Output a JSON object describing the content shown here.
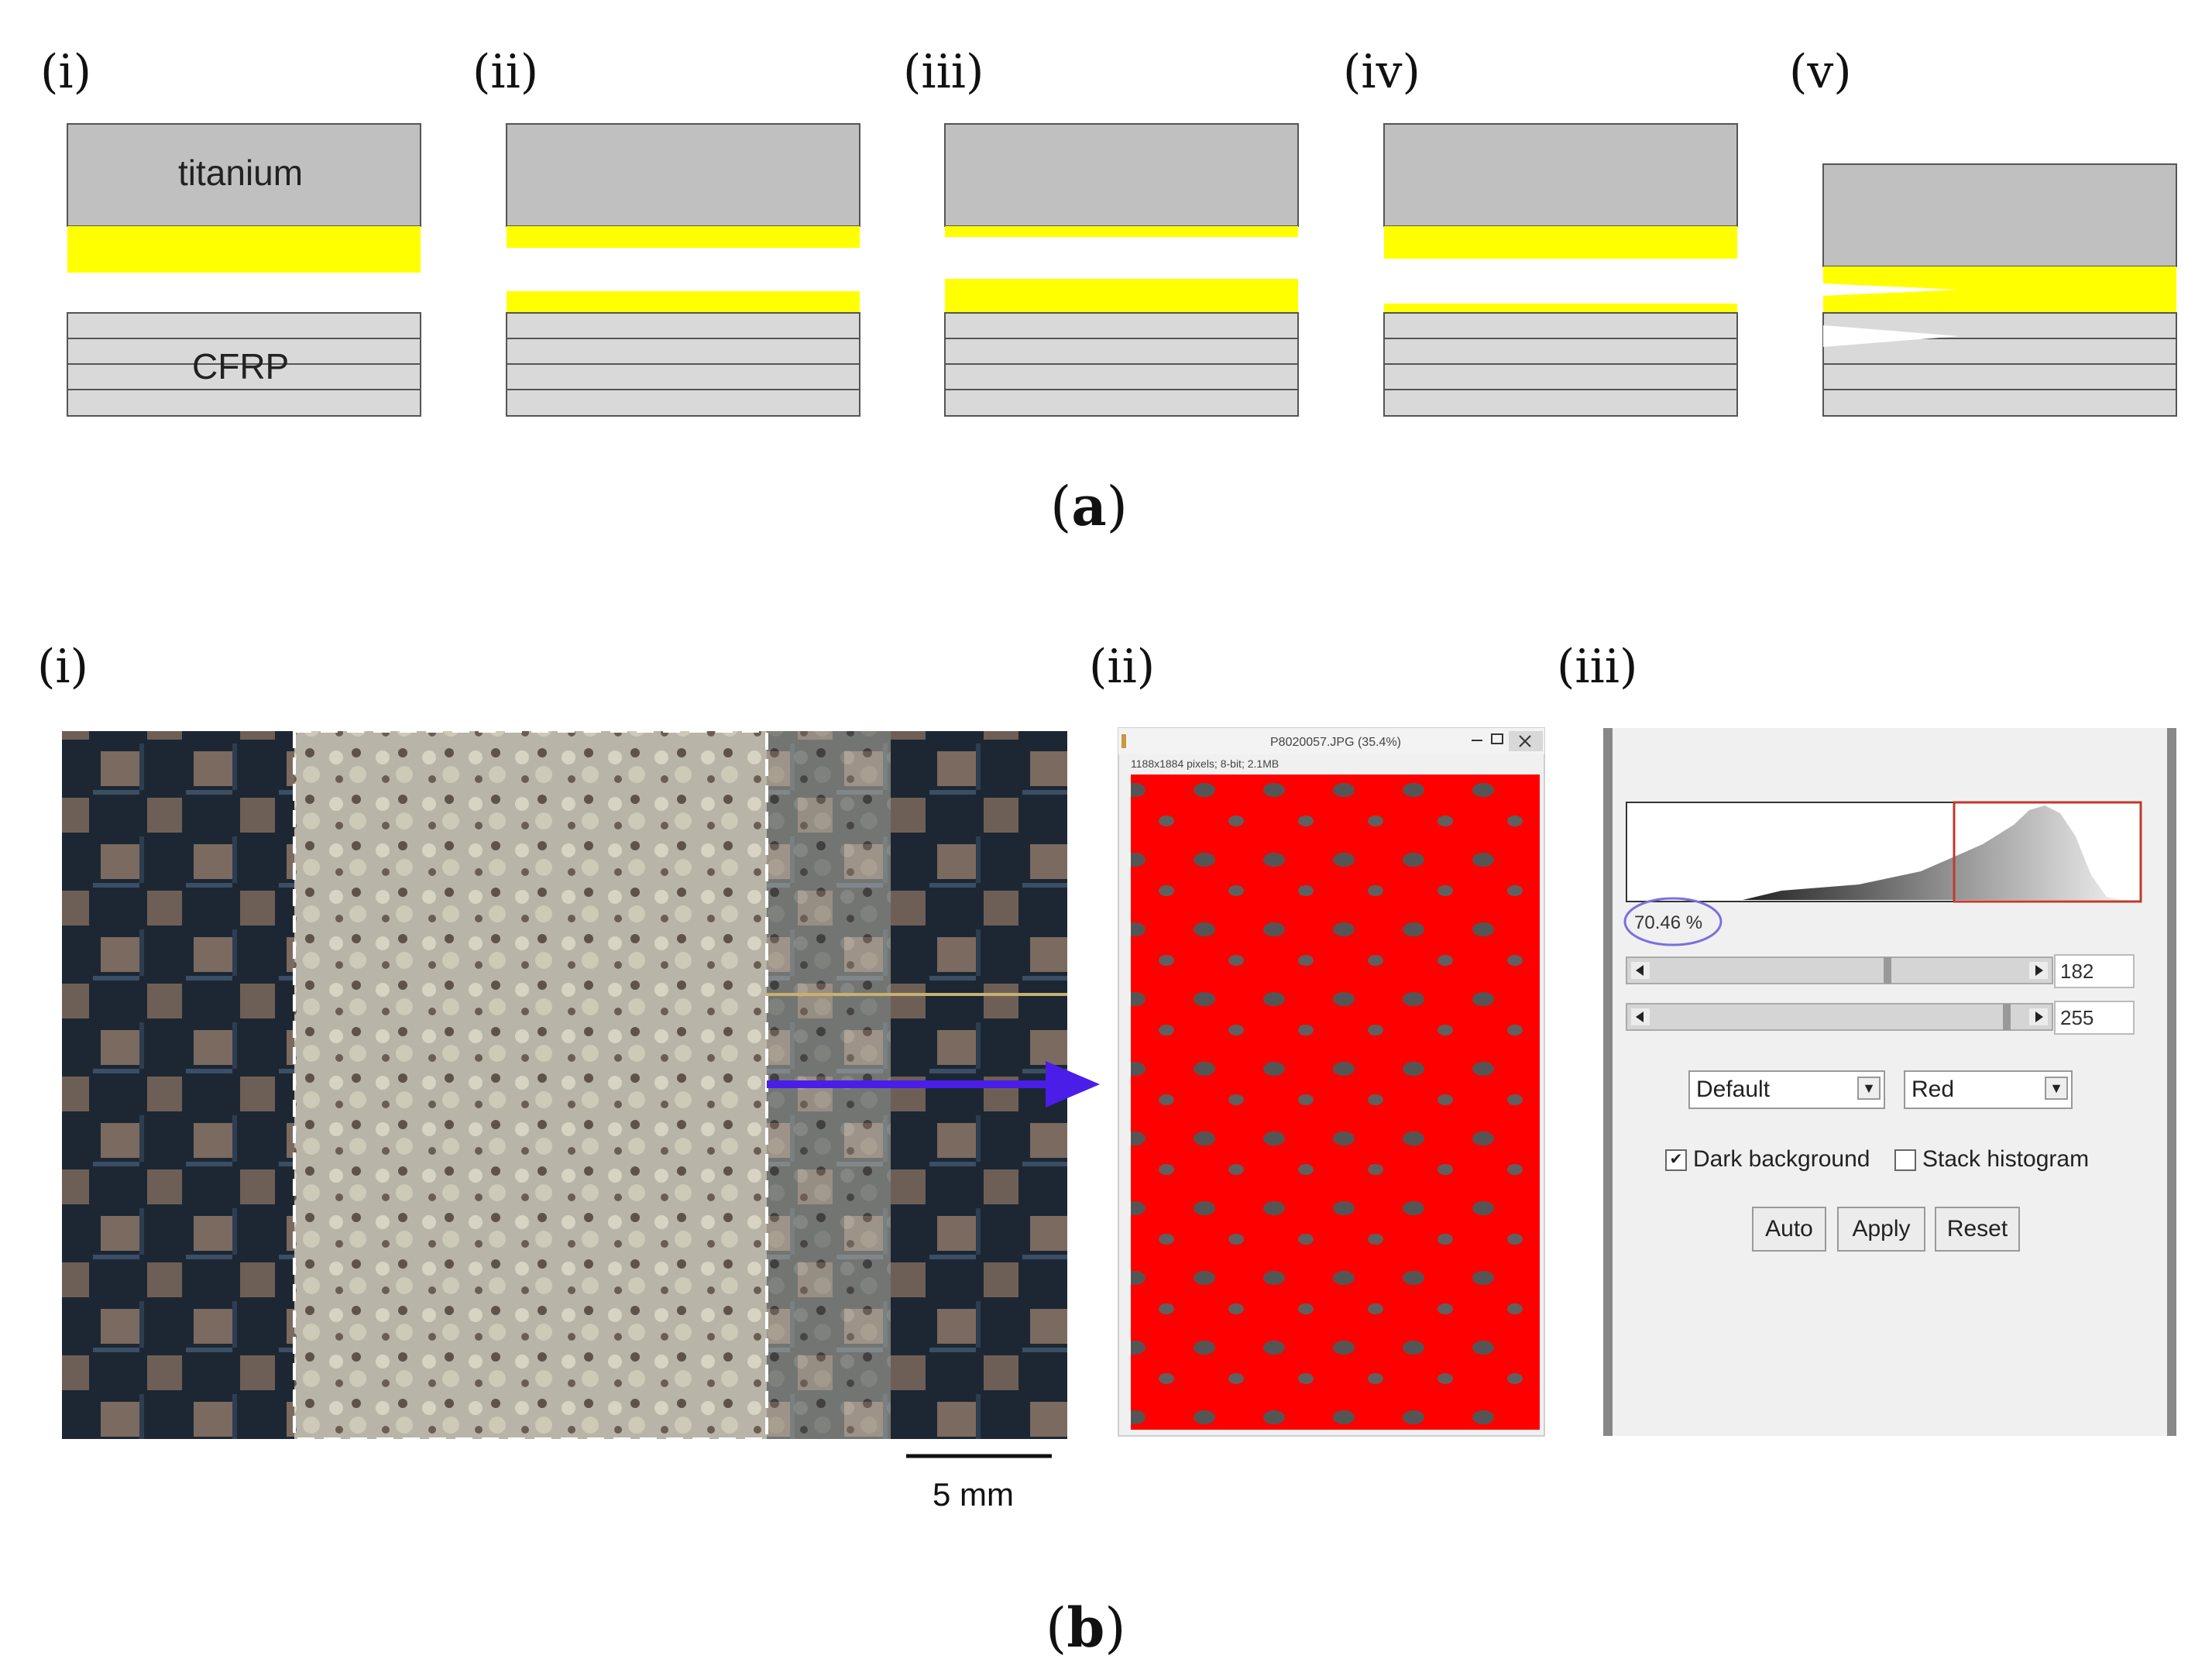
{
  "panel_a": {
    "sublabels": [
      "(i)",
      "(ii)",
      "(iii)",
      "(iv)",
      "(v)"
    ],
    "layer_labels": {
      "top": "titanium",
      "bottom": "CFRP"
    },
    "caption_open": "(",
    "caption_letter": "a",
    "caption_close": ")"
  },
  "panel_b": {
    "sublabels": [
      "(i)",
      "(ii)",
      "(iii)"
    ],
    "scale_bar_label": "5 mm",
    "caption_open": "(",
    "caption_letter": "b",
    "caption_close": ")",
    "image_window": {
      "title": "P8020057.JPG (35.4%)",
      "info": "1188x1884 pixels; 8-bit; 2.1MB"
    },
    "threshold_dialog": {
      "percentage": "70.46 %",
      "min_value": "182",
      "max_value": "255",
      "method": "Default",
      "display": "Red",
      "dark_background_label": "Dark background",
      "dark_background_checked": true,
      "stack_histogram_label": "Stack histogram",
      "stack_histogram_checked": false,
      "auto_button": "Auto",
      "apply_button": "Apply",
      "reset_button": "Reset"
    }
  },
  "colors": {
    "titanium": "#c0c0c0",
    "adhesive": "#ffff00",
    "cfrp": "#d9d9d9",
    "threshold_overlay": "#ff0000",
    "arrow": "#4a1ee8",
    "highlight_ellipse": "#7b6fe0"
  }
}
